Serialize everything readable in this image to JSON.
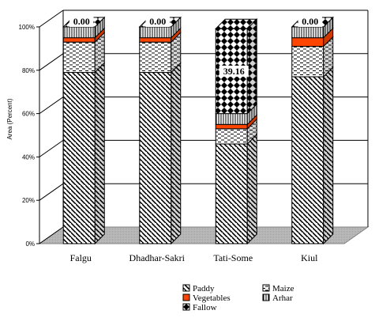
{
  "chart_data": {
    "type": "bar",
    "stacked": true,
    "three_d": true,
    "categories": [
      "Falgu",
      "Dhadhar-Sakri",
      "Tati-Some",
      "Kiul"
    ],
    "series": [
      {
        "name": "Paddy",
        "values": [
          79,
          79,
          46,
          77
        ],
        "pattern": "diagonal-hatch"
      },
      {
        "name": "Maize",
        "values": [
          14,
          14,
          7,
          14
        ],
        "pattern": "dashed"
      },
      {
        "name": "Vegetables",
        "values": [
          2,
          2,
          2,
          4
        ],
        "pattern": "solid",
        "color": "#ff4500"
      },
      {
        "name": "Arhar",
        "values": [
          5,
          5,
          5,
          5
        ],
        "pattern": "vertical-lines"
      },
      {
        "name": "Fallow",
        "values": [
          0.0,
          0.0,
          39.16,
          0.0
        ],
        "pattern": "checker"
      }
    ],
    "data_labels": [
      "0.00",
      "0.00",
      "39.16",
      "0.00"
    ],
    "ylabel": "Area (Percent)",
    "yticks": [
      "0%",
      "20%",
      "40%",
      "60%",
      "80%",
      "100%"
    ],
    "ylim": [
      0,
      100
    ],
    "grid": true,
    "legend_position": "bottom"
  }
}
